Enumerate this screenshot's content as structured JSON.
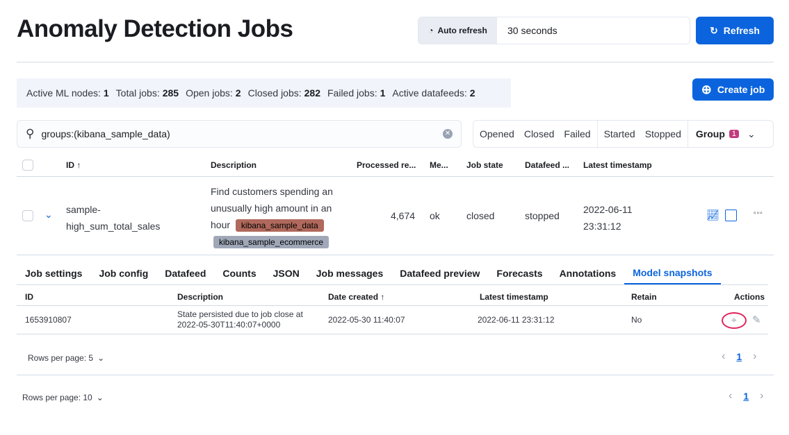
{
  "header": {
    "title": "Anomaly Detection Jobs",
    "auto_refresh_label": "Auto refresh",
    "auto_refresh_value": "30 seconds",
    "refresh_label": "Refresh"
  },
  "stats": [
    {
      "label": "Active ML nodes:",
      "value": "1"
    },
    {
      "label": "Total jobs:",
      "value": "285"
    },
    {
      "label": "Open jobs:",
      "value": "2"
    },
    {
      "label": "Closed jobs:",
      "value": "282"
    },
    {
      "label": "Failed jobs:",
      "value": "1"
    },
    {
      "label": "Active datafeeds:",
      "value": "2"
    }
  ],
  "create_job_label": "Create job",
  "search": {
    "value": "groups:(kibana_sample_data)"
  },
  "filters": {
    "opened": "Opened",
    "closed": "Closed",
    "failed": "Failed",
    "started": "Started",
    "stopped": "Stopped",
    "group": "Group",
    "group_count": "1"
  },
  "table": {
    "headers": {
      "id": "ID ↑",
      "description": "Description",
      "processed": "Processed re...",
      "memory": "Me...",
      "job_state": "Job state",
      "datafeed": "Datafeed ...",
      "latest": "Latest timestamp"
    },
    "row": {
      "id": "sample-high_sum_total_sales",
      "description": "Find customers spending an unusually high amount in an hour",
      "tags": [
        "kibana_sample_data",
        "kibana_sample_ecommerce"
      ],
      "processed": "4,674",
      "memory": "ok",
      "job_state": "closed",
      "datafeed": "stopped",
      "latest_date": "2022-06-11",
      "latest_time": "23:31:12"
    }
  },
  "tag_colors": {
    "kibana_sample_data": "#b0695c",
    "kibana_sample_ecommerce": "#a0a8b8"
  },
  "tabs": [
    "Job settings",
    "Job config",
    "Datafeed",
    "Counts",
    "JSON",
    "Job messages",
    "Datafeed preview",
    "Forecasts",
    "Annotations",
    "Model snapshots"
  ],
  "active_tab": "Model snapshots",
  "snapshots": {
    "headers": {
      "id": "ID",
      "description": "Description",
      "date_created": "Date created ↑",
      "latest": "Latest timestamp",
      "retain": "Retain",
      "actions": "Actions"
    },
    "row": {
      "id": "1653910807",
      "description_line1": "State persisted due to job close at",
      "description_line2": "2022-05-30T11:40:07+0000",
      "date_created": "2022-05-30 11:40:07",
      "latest": "2022-06-11 23:31:12",
      "retain": "No"
    },
    "rows_per_page": "Rows per page: 5",
    "page": "1"
  },
  "outer_pagination": {
    "rows_per_page": "Rows per page: 10",
    "page": "1"
  }
}
